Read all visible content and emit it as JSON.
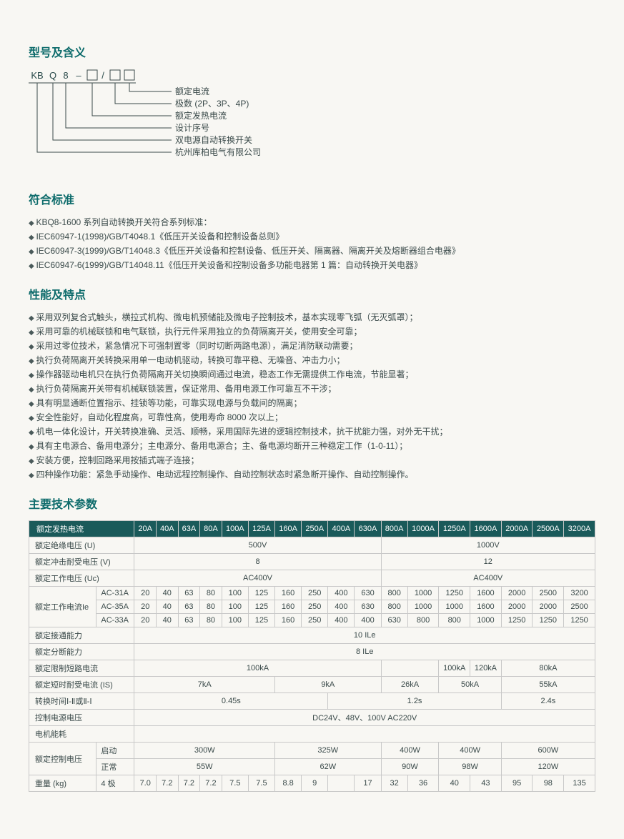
{
  "sections": {
    "model_title": "型号及含义",
    "standards_title": "符合标准",
    "features_title": "性能及特点",
    "specs_title": "主要技术参数"
  },
  "model": {
    "code_parts": [
      "KB",
      "Q",
      "8",
      "–",
      "□",
      "/",
      "□",
      "□"
    ],
    "decode": [
      "额定电流",
      "极数 (2P、3P、4P)",
      "额定发热电流",
      "设计序号",
      "双电源自动转换开关",
      "杭州库柏电气有限公司"
    ]
  },
  "standards": [
    "KBQ8-1600 系列自动转换开关符合系列标准：",
    "IEC60947-1(1998)/GB/T4048.1《低压开关设备和控制设备总则》",
    "IEC60947-3(1999)/GB/T14048.3《低压开关设备和控制设备、低压开关、隔离器、隔离开关及熔断器组合电器》",
    "IEC60947-6(1999)/GB/T14048.11《低压开关设备和控制设备多功能电器第 1 篇：自动转换开关电器》"
  ],
  "features": [
    "采用双列复合式触头，横拉式机构、微电机预储能及微电子控制技术，基本实现零飞弧（无灭弧罩）；",
    "采用可靠的机械联锁和电气联锁，执行元件采用独立的负荷隔离开关，使用安全可靠；",
    "采用过零位技术，紧急情况下可强制置零（同时切断两路电源），满足消防联动需要；",
    "执行负荷隔离开关转换采用单一电动机驱动，转换可靠平稳、无噪音、冲击力小；",
    "操作器驱动电机只在执行负荷隔离开关切换瞬间通过电流，稳态工作无需提供工作电流，节能显著；",
    "执行负荷隔离开关带有机械联锁装置，保证常用、备用电源工作可靠互不干涉；",
    "具有明显通断位置指示、挂锁等功能，可靠实现电源与负载间的隔离；",
    "安全性能好，自动化程度高，可靠性高，使用寿命 8000 次以上；",
    "机电一体化设计，开关转换准确、灵活、顺畅，采用国际先进的逻辑控制技术，抗干扰能力强，对外无干扰；",
    "具有主电源合、备用电源分；主电源分、备用电源合；主、备电源均断开三种稳定工作（1-0-11）；",
    "安装方便，控制回路采用按插式端子连接；",
    "四种操作功能：紧急手动操作、电动远程控制操作、自动控制状态时紧急断开操作、自动控制操作。"
  ],
  "spec_table": {
    "header_first": "额定发热电流",
    "currents": [
      "20A",
      "40A",
      "63A",
      "80A",
      "100A",
      "125A",
      "160A",
      "250A",
      "400A",
      "630A",
      "800A",
      "1000A",
      "1250A",
      "1600A",
      "2000A",
      "2500A",
      "3200A"
    ],
    "rows": {
      "insulation_v": {
        "label": "额定绝缘电压 (U)",
        "spans": [
          {
            "cols": 10,
            "val": "500V"
          },
          {
            "cols": 7,
            "val": "1000V"
          }
        ]
      },
      "impulse_v": {
        "label": "额定冲击耐受电压 (V)",
        "spans": [
          {
            "cols": 10,
            "val": "8"
          },
          {
            "cols": 7,
            "val": "12"
          }
        ]
      },
      "work_v": {
        "label": "额定工作电压 (Uc)",
        "spans": [
          {
            "cols": 10,
            "val": "AC400V"
          },
          {
            "cols": 7,
            "val": "AC400V"
          }
        ]
      },
      "work_i_group_label": "额定工作电流Ie",
      "ac31a": {
        "label": "AC-31A",
        "vals": [
          "20",
          "40",
          "63",
          "80",
          "100",
          "125",
          "160",
          "250",
          "400",
          "630",
          "800",
          "1000",
          "1250",
          "1600",
          "2000",
          "2500",
          "3200"
        ]
      },
      "ac35a": {
        "label": "AC-35A",
        "vals": [
          "20",
          "40",
          "63",
          "80",
          "100",
          "125",
          "160",
          "250",
          "400",
          "630",
          "800",
          "1000",
          "1000",
          "1600",
          "2000",
          "2000",
          "2500"
        ]
      },
      "ac33a": {
        "label": "AC-33A",
        "vals": [
          "20",
          "40",
          "63",
          "80",
          "100",
          "125",
          "160",
          "250",
          "400",
          "400",
          "630",
          "800",
          "800",
          "1000",
          "1250",
          "1250",
          "1250"
        ]
      },
      "making": {
        "label": "额定接通能力",
        "spans": [
          {
            "cols": 17,
            "val": "10 ILe"
          }
        ]
      },
      "breaking": {
        "label": "额定分断能力",
        "spans": [
          {
            "cols": 17,
            "val": "8 ILe"
          }
        ]
      },
      "short_circuit": {
        "label": "额定限制短路电流",
        "spans": [
          {
            "cols": 10,
            "val": "100kA"
          },
          {
            "cols": 2,
            "val": ""
          },
          {
            "cols": 1,
            "val": "100kA"
          },
          {
            "cols": 1,
            "val": "120kA"
          },
          {
            "cols": 3,
            "val": "80kA"
          }
        ]
      },
      "short_time": {
        "label": "额定短时耐受电流 (IS)",
        "spans": [
          {
            "cols": 6,
            "val": "7kA"
          },
          {
            "cols": 4,
            "val": "9kA"
          },
          {
            "cols": 2,
            "val": "26kA"
          },
          {
            "cols": 2,
            "val": "50kA"
          },
          {
            "cols": 3,
            "val": "55kA"
          }
        ]
      },
      "transfer_time": {
        "label": "转换时间Ⅰ-Ⅱ或Ⅱ-Ⅰ",
        "spans": [
          {
            "cols": 8,
            "val": "0.45s"
          },
          {
            "cols": 6,
            "val": "1.2s"
          },
          {
            "cols": 3,
            "val": "2.4s"
          }
        ]
      },
      "ctrl_supply": {
        "label": "控制电源电压",
        "spans": [
          {
            "cols": 17,
            "val": "DC24V、48V、100V  AC220V"
          }
        ]
      },
      "motor_power": {
        "label": "电机能耗",
        "spans": [
          {
            "cols": 17,
            "val": ""
          }
        ]
      },
      "ctrl_v_group": "额定控制电压",
      "startup": {
        "label": "启动",
        "spans": [
          {
            "cols": 6,
            "val": "300W"
          },
          {
            "cols": 4,
            "val": "325W"
          },
          {
            "cols": 2,
            "val": "400W"
          },
          {
            "cols": 2,
            "val": "400W"
          },
          {
            "cols": 3,
            "val": "600W"
          }
        ]
      },
      "normal": {
        "label": "正常",
        "spans": [
          {
            "cols": 6,
            "val": "55W"
          },
          {
            "cols": 4,
            "val": "62W"
          },
          {
            "cols": 2,
            "val": "90W"
          },
          {
            "cols": 2,
            "val": "98W"
          },
          {
            "cols": 3,
            "val": "120W"
          }
        ]
      },
      "weight": {
        "label": "重量 (kg)",
        "sublabel": "4 极",
        "vals": [
          "7.0",
          "7.2",
          "7.2",
          "7.2",
          "7.5",
          "7.5",
          "8.8",
          "9",
          "",
          "17",
          "32",
          "36",
          "40",
          "43",
          "95",
          "98",
          "135"
        ]
      }
    }
  }
}
